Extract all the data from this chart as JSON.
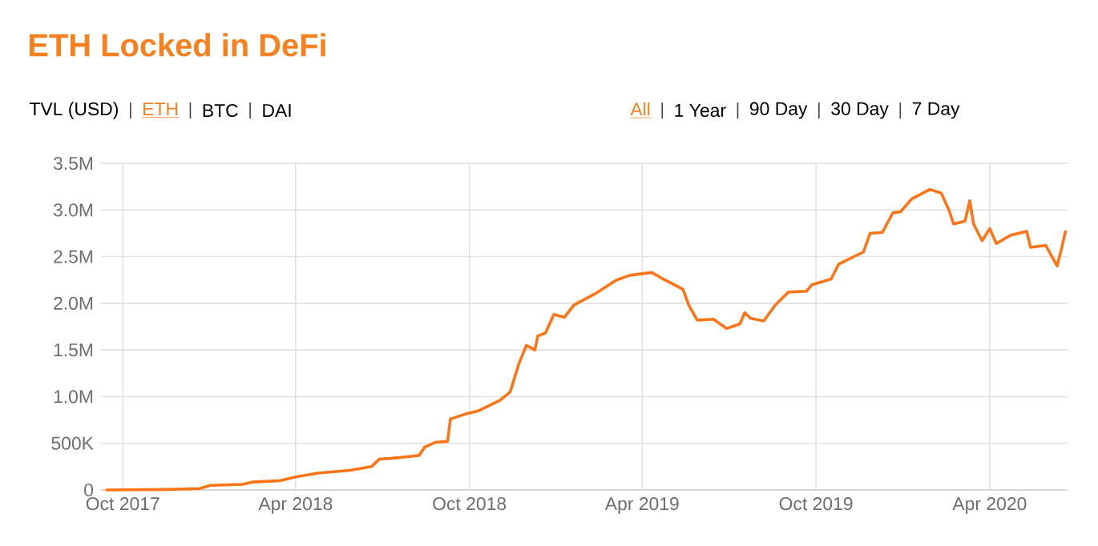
{
  "chart_data": {
    "type": "line",
    "title": "ETH Locked in DeFi",
    "annotations": [
      "TVL (USD)",
      "ETH",
      "BTC",
      "DAI",
      "All",
      "1 Year",
      "90 Day",
      "30 Day",
      "7 Day"
    ],
    "x": [
      "2017-09-13",
      "2017-11-17",
      "2017-12-21",
      "2018-01-01",
      "2018-02-04",
      "2018-02-15",
      "2018-03-16",
      "2018-04-01",
      "2018-04-24",
      "2018-05-28",
      "2018-06-20",
      "2018-06-28",
      "2018-07-12",
      "2018-08-09",
      "2018-08-15",
      "2018-08-26",
      "2018-09-08",
      "2018-09-11",
      "2018-09-29",
      "2018-10-11",
      "2018-11-02",
      "2018-11-13",
      "2018-11-22",
      "2018-11-30",
      "2018-12-09",
      "2018-12-12",
      "2018-12-20",
      "2018-12-29",
      "2019-01-09",
      "2019-01-19",
      "2019-02-10",
      "2019-03-05",
      "2019-03-19",
      "2019-04-11",
      "2019-04-25",
      "2019-05-14",
      "2019-05-20",
      "2019-05-29",
      "2019-06-15",
      "2019-06-29",
      "2019-07-13",
      "2019-07-18",
      "2019-07-24",
      "2019-08-07",
      "2019-08-19",
      "2019-09-02",
      "2019-09-21",
      "2019-09-27",
      "2019-10-17",
      "2019-10-25",
      "2019-11-20",
      "2019-11-27",
      "2019-12-10",
      "2019-12-21",
      "2019-12-29",
      "2020-01-10",
      "2020-01-29",
      "2020-02-10",
      "2020-02-18",
      "2020-02-23",
      "2020-03-06",
      "2020-03-11",
      "2020-03-15",
      "2020-03-24",
      "2020-04-01",
      "2020-04-08",
      "2020-04-23",
      "2020-05-10",
      "2020-05-14",
      "2020-05-30",
      "2020-06-11",
      "2020-06-16",
      "2020-06-20"
    ],
    "series": [
      {
        "color": "#ff7417",
        "values": [
          0,
          5000,
          15000,
          50000,
          60000,
          85000,
          100000,
          140000,
          180000,
          210000,
          250000,
          330000,
          340000,
          370000,
          460000,
          510000,
          520000,
          760000,
          820000,
          850000,
          960000,
          1050000,
          1350000,
          1550000,
          1500000,
          1650000,
          1680000,
          1880000,
          1850000,
          1980000,
          2100000,
          2250000,
          2300000,
          2330000,
          2250000,
          2150000,
          1980000,
          1820000,
          1830000,
          1730000,
          1780000,
          1900000,
          1840000,
          1810000,
          1980000,
          2120000,
          2130000,
          2200000,
          2260000,
          2420000,
          2550000,
          2750000,
          2760000,
          2970000,
          2980000,
          3120000,
          3220000,
          3180000,
          3000000,
          2850000,
          2880000,
          3100000,
          2850000,
          2670000,
          2800000,
          2640000,
          2730000,
          2770000,
          2600000,
          2620000,
          2400000,
          2600000,
          2780000
        ]
      }
    ],
    "xlim": [
      "2017-09-08",
      "2020-06-22"
    ],
    "xticks": [
      {
        "value": "2017-10-01",
        "label": "Oct 2017"
      },
      {
        "value": "2018-04-01",
        "label": "Apr 2018"
      },
      {
        "value": "2018-10-01",
        "label": "Oct 2018"
      },
      {
        "value": "2019-04-01",
        "label": "Apr 2019"
      },
      {
        "value": "2019-10-01",
        "label": "Oct 2019"
      },
      {
        "value": "2020-04-01",
        "label": "Apr 2020"
      }
    ],
    "ylim": [
      0,
      3500000
    ],
    "yticks": [
      0,
      {
        "value": 500000,
        "label": "500K"
      },
      {
        "value": 1000000,
        "label": "1.0M"
      },
      {
        "value": 1500000,
        "label": "1.5M"
      },
      {
        "value": 2000000,
        "label": "2.0M"
      },
      {
        "value": 2500000,
        "label": "2.5M"
      },
      {
        "value": 3000000,
        "label": "3.0M"
      },
      {
        "value": 3500000,
        "label": "3.5M"
      }
    ],
    "grid": true,
    "marker": "none",
    "line_style": "solid"
  }
}
